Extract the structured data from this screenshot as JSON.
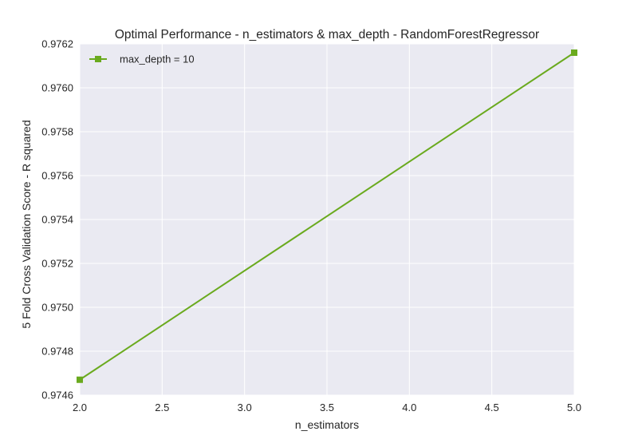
{
  "chart_data": {
    "type": "line",
    "title": "Optimal Performance - n_estimators & max_depth - RandomForestRegressor",
    "xlabel": "n_estimators",
    "ylabel": "5 Fold Cross Validation Score - R squared",
    "xlim": [
      2.0,
      5.0
    ],
    "ylim": [
      0.9746,
      0.9762
    ],
    "xticks": [
      2.0,
      2.5,
      3.0,
      3.5,
      4.0,
      4.5,
      5.0
    ],
    "xtick_labels": [
      "2.0",
      "2.5",
      "3.0",
      "3.5",
      "4.0",
      "4.5",
      "5.0"
    ],
    "yticks": [
      0.9746,
      0.9748,
      0.975,
      0.9752,
      0.9754,
      0.9756,
      0.9758,
      0.976,
      0.9762
    ],
    "ytick_labels": [
      "0.9746",
      "0.9748",
      "0.9750",
      "0.9752",
      "0.9754",
      "0.9756",
      "0.9758",
      "0.9760",
      "0.9762"
    ],
    "grid": true,
    "legend_position": "top-left",
    "series": [
      {
        "name": "max_depth = 10",
        "color": "#6aaa1e",
        "marker": "square",
        "x": [
          2,
          5
        ],
        "y": [
          0.97467,
          0.97616
        ]
      }
    ]
  }
}
